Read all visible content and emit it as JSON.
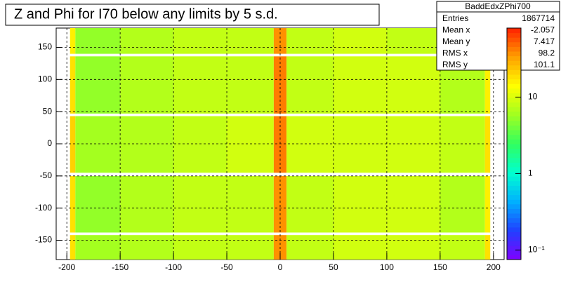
{
  "chart_data": {
    "type": "heatmap",
    "title": "Z and Phi for I70 below any limits by 5 s.d.",
    "xbins": [
      -197,
      -192,
      -150,
      -100,
      -50,
      -6,
      6,
      50,
      100,
      150,
      192,
      197
    ],
    "ybins": [
      -180,
      -142,
      -138,
      -50,
      -45,
      43,
      47,
      136,
      140,
      180
    ],
    "values": [
      [
        18,
        6,
        7,
        8,
        8,
        35,
        8,
        9,
        9,
        8,
        18
      ],
      [
        null,
        null,
        null,
        null,
        null,
        null,
        null,
        null,
        null,
        null,
        null
      ],
      [
        18,
        5,
        7,
        8,
        8,
        38,
        8,
        9,
        9,
        7,
        16
      ],
      [
        null,
        null,
        null,
        null,
        null,
        null,
        null,
        null,
        null,
        null,
        null
      ],
      [
        20,
        6,
        7,
        8,
        9,
        45,
        9,
        9,
        9,
        8,
        18
      ],
      [
        null,
        null,
        null,
        null,
        null,
        null,
        null,
        null,
        null,
        null,
        null
      ],
      [
        18,
        5,
        7,
        8,
        8,
        40,
        8,
        9,
        9,
        7,
        16
      ],
      [
        null,
        null,
        null,
        null,
        null,
        null,
        null,
        null,
        null,
        null,
        null
      ],
      [
        16,
        5,
        7,
        8,
        8,
        35,
        8,
        9,
        8,
        7,
        15
      ]
    ],
    "xlim": [
      -210,
      210
    ],
    "ylim": [
      -180,
      180
    ],
    "xticks": [
      -200,
      -150,
      -100,
      -50,
      0,
      50,
      100,
      150,
      200
    ],
    "yticks": [
      -150,
      -100,
      -50,
      0,
      50,
      100,
      150
    ],
    "zlim": [
      0.075,
      80
    ],
    "zlog": true,
    "zticks": [
      {
        "value": 0.1,
        "label": "10⁻¹"
      },
      1,
      10
    ],
    "palette": [
      "#8000ff",
      "#2040ff",
      "#00b0ff",
      "#00ffd0",
      "#30ff60",
      "#a0ff20",
      "#ffff00",
      "#ffa000",
      "#ff2000"
    ],
    "grid": true,
    "stats": {
      "title": "BaddEdxZPhi700",
      "rows": [
        [
          "Entries",
          "1867714"
        ],
        [
          "Mean x",
          "-2.057"
        ],
        [
          "Mean y",
          "7.417"
        ],
        [
          "RMS x",
          "98.2"
        ],
        [
          "RMS y",
          "101.1"
        ]
      ]
    }
  }
}
